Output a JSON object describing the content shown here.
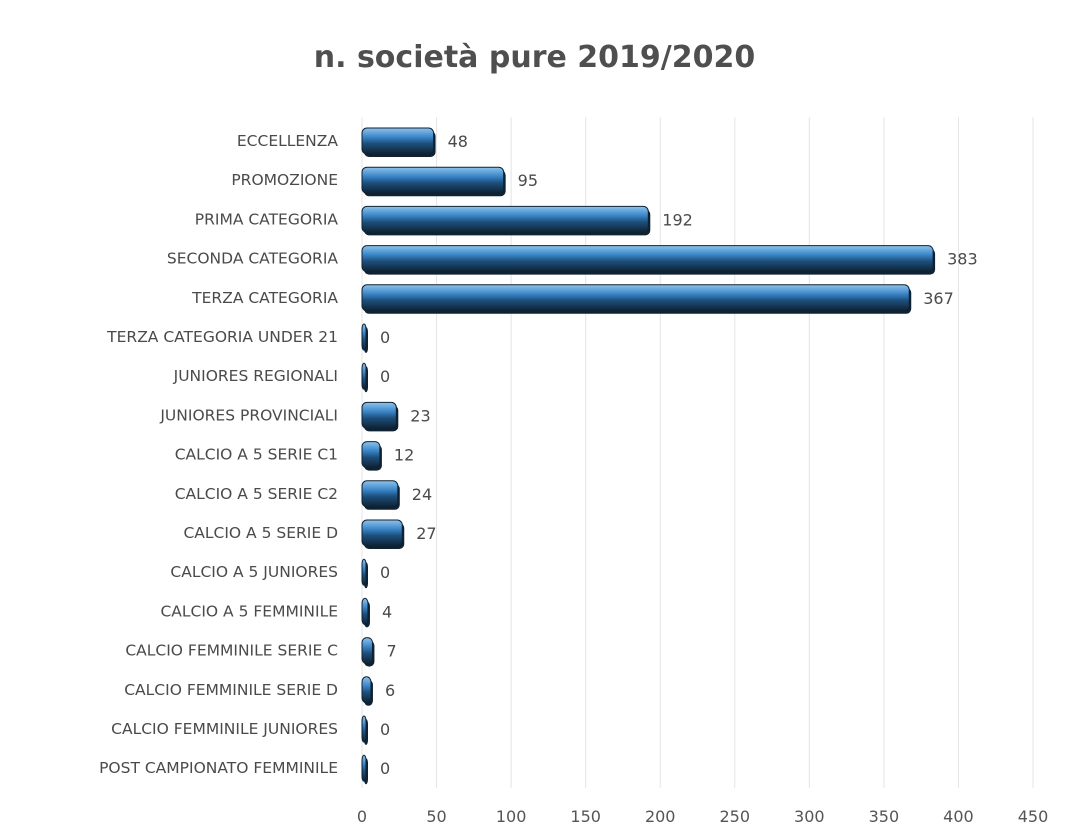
{
  "chart_data": {
    "type": "bar",
    "orientation": "horizontal",
    "title": "n. società pure 2019/2020",
    "categories": [
      "ECCELLENZA",
      "PROMOZIONE",
      "PRIMA CATEGORIA",
      "SECONDA CATEGORIA",
      "TERZA CATEGORIA",
      "TERZA CATEGORIA UNDER 21",
      "JUNIORES REGIONALI",
      "JUNIORES PROVINCIALI",
      "CALCIO A 5 SERIE C1",
      "CALCIO A 5 SERIE C2",
      "CALCIO A 5 SERIE D",
      "CALCIO A 5 JUNIORES",
      "CALCIO A 5 FEMMINILE",
      "CALCIO FEMMINILE SERIE C",
      "CALCIO FEMMINILE SERIE D",
      "CALCIO FEMMINILE JUNIORES",
      "POST CAMPIONATO FEMMINILE"
    ],
    "values": [
      48,
      95,
      192,
      383,
      367,
      0,
      0,
      23,
      12,
      24,
      27,
      0,
      4,
      7,
      6,
      0,
      0
    ],
    "xlim": [
      0,
      450
    ],
    "xticks": [
      0,
      50,
      100,
      150,
      200,
      250,
      300,
      350,
      400,
      450
    ],
    "grid": true,
    "legend": "none",
    "bar_color": "#3a86c8",
    "bar_dark_color": "#0f2233"
  }
}
